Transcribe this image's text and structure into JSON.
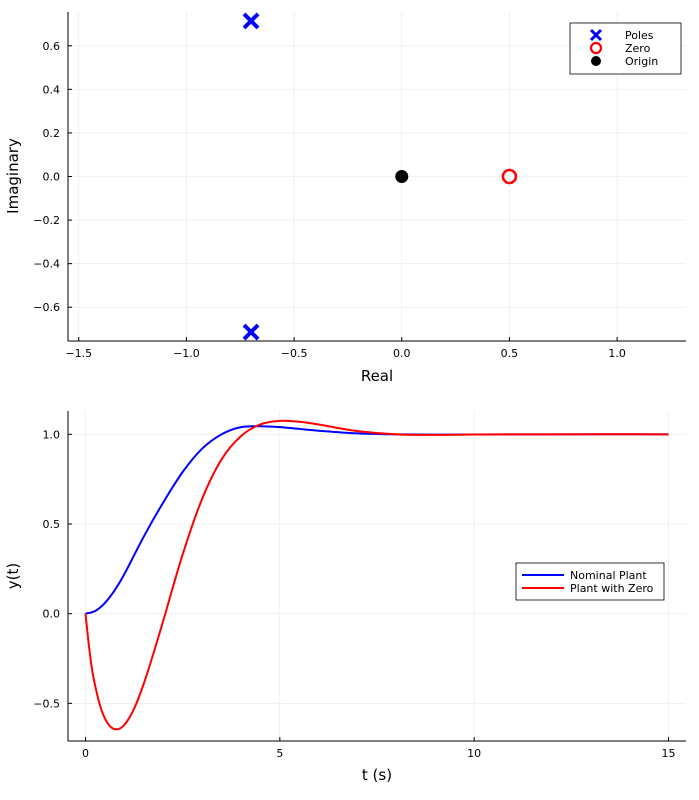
{
  "chart_data": [
    {
      "type": "scatter",
      "xlabel": "Real",
      "ylabel": "Imaginary",
      "xlim": [
        -1.55,
        1.32
      ],
      "ylim": [
        -0.755,
        0.755
      ],
      "xticks": [
        -1.5,
        -1.0,
        -0.5,
        0.0,
        0.5,
        1.0
      ],
      "xtick_labels": [
        "−1.5",
        "−1.0",
        "−0.5",
        "0.0",
        "0.5",
        "1.0"
      ],
      "yticks": [
        -0.6,
        -0.4,
        -0.2,
        0.0,
        0.2,
        0.4,
        0.6
      ],
      "ytick_labels": [
        "−0.6",
        "−0.4",
        "−0.2",
        "0.0",
        "0.2",
        "0.4",
        "0.6"
      ],
      "grid": true,
      "legend": "top-right",
      "series": [
        {
          "name": "Poles",
          "marker": "x",
          "color": "#0000ff",
          "points": [
            [
              -0.7,
              0.714
            ],
            [
              -0.7,
              -0.714
            ]
          ]
        },
        {
          "name": "Zero",
          "marker": "open-circle",
          "color": "#ff0000",
          "points": [
            [
              0.5,
              0.0
            ]
          ]
        },
        {
          "name": "Origin",
          "marker": "filled-circle",
          "color": "#000000",
          "points": [
            [
              0.0,
              0.0
            ]
          ]
        }
      ]
    },
    {
      "type": "line",
      "xlabel": "t (s)",
      "ylabel": "y(t)",
      "xlim": [
        -0.45,
        15.45
      ],
      "ylim": [
        -0.71,
        1.13
      ],
      "xticks": [
        0,
        5,
        10,
        15
      ],
      "xtick_labels": [
        "0",
        "5",
        "10",
        "15"
      ],
      "yticks": [
        -0.5,
        0.0,
        0.5,
        1.0
      ],
      "ytick_labels": [
        "−0.5",
        "0.0",
        "0.5",
        "1.0"
      ],
      "grid": true,
      "legend": "right",
      "series": [
        {
          "name": "Nominal Plant",
          "color": "#0000ff",
          "x": [
            0,
            0.25,
            0.5,
            0.75,
            1,
            1.5,
            2,
            2.5,
            3,
            3.5,
            4,
            4.5,
            5,
            5.5,
            6,
            7,
            8,
            9,
            10,
            12,
            15
          ],
          "y": [
            0,
            0.015,
            0.06,
            0.13,
            0.22,
            0.43,
            0.62,
            0.79,
            0.92,
            1.0,
            1.04,
            1.045,
            1.04,
            1.03,
            1.02,
            1.005,
            1.0,
            0.998,
            0.999,
            1.0,
            1.0
          ]
        },
        {
          "name": "Plant with Zero",
          "color": "#ff0000",
          "x": [
            0,
            0.1,
            0.2,
            0.4,
            0.6,
            0.8,
            1.0,
            1.25,
            1.5,
            1.75,
            2,
            2.5,
            3,
            3.5,
            4,
            4.5,
            5,
            5.5,
            6,
            6.5,
            7,
            8,
            9,
            10,
            12,
            15
          ],
          "y": [
            0,
            -0.2,
            -0.35,
            -0.53,
            -0.62,
            -0.645,
            -0.62,
            -0.53,
            -0.39,
            -0.22,
            -0.04,
            0.33,
            0.64,
            0.86,
            0.99,
            1.055,
            1.075,
            1.07,
            1.055,
            1.035,
            1.018,
            1.0,
            0.997,
            0.999,
            1.0,
            1.0
          ]
        }
      ]
    }
  ]
}
